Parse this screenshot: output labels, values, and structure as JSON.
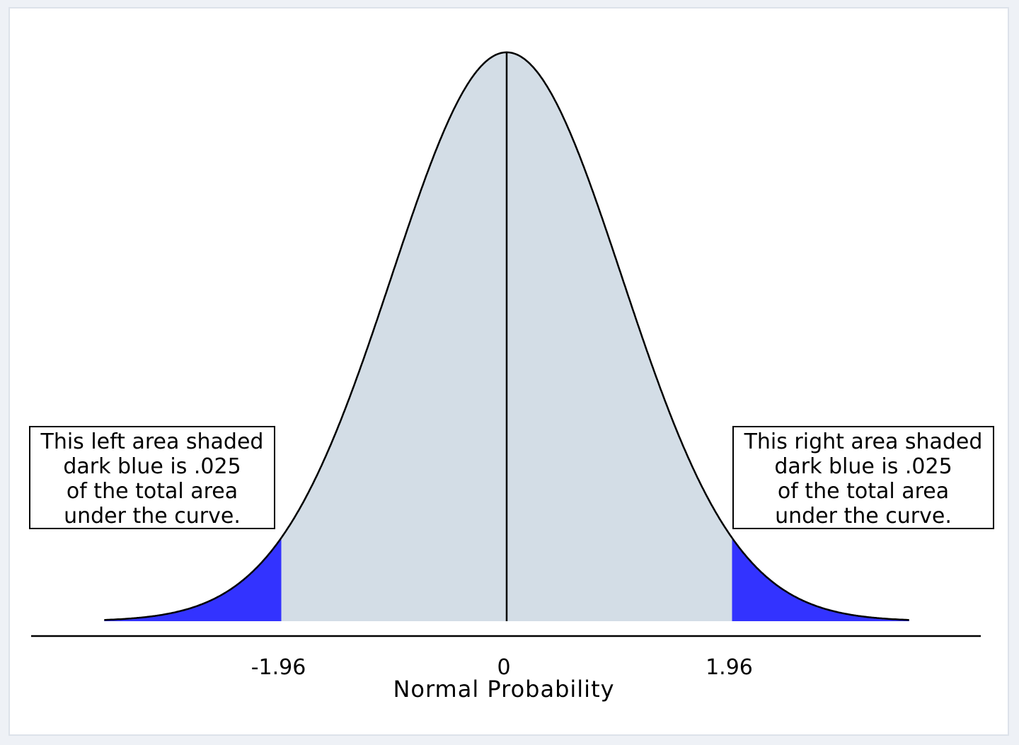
{
  "chart_data": {
    "type": "area",
    "xlabel": "Normal Probability",
    "xlim": [
      -3.5,
      3.5
    ],
    "ylim": [
      0,
      0.3989
    ],
    "x_ticks": [
      {
        "value": -1.96,
        "label": "-1.96"
      },
      {
        "value": 0,
        "label": "0"
      },
      {
        "value": 1.96,
        "label": "1.96"
      }
    ],
    "curve": {
      "distribution": "standard normal",
      "mean": 0,
      "sd": 1,
      "fill": "#d3dde6",
      "stroke": "#000000"
    },
    "reference_line": {
      "x": 0,
      "color": "#000000"
    },
    "shaded_regions": [
      {
        "name": "left tail",
        "from": -3.5,
        "to": -1.96,
        "area": 0.025,
        "color": "#3333ff"
      },
      {
        "name": "right tail",
        "from": 1.96,
        "to": 3.5,
        "area": 0.025,
        "color": "#3333ff"
      }
    ],
    "annotations": [
      {
        "side": "left",
        "lines": [
          "This left area shaded",
          "dark blue is .025",
          "of the total area",
          "under the curve."
        ]
      },
      {
        "side": "right",
        "lines": [
          "This right area shaded",
          "dark blue is .025",
          "of the total area",
          "under the curve."
        ]
      }
    ],
    "grid": false,
    "legend": "none"
  }
}
